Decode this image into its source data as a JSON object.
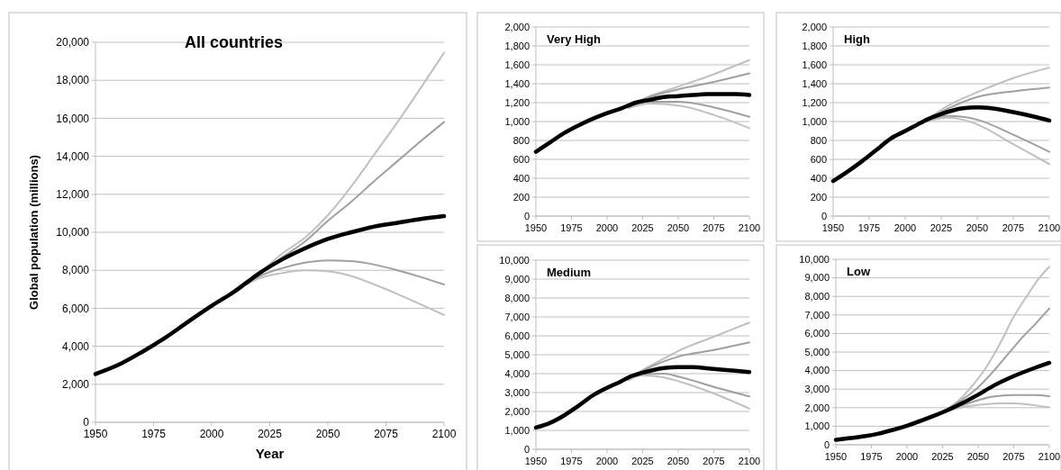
{
  "chart_data": [
    {
      "type": "line",
      "title": "All countries",
      "xlabel": "Year",
      "ylabel": "Global population (millions)",
      "xlim": [
        1950,
        2100
      ],
      "xticks": [
        1950,
        1975,
        2000,
        2025,
        2050,
        2075,
        2100
      ],
      "ylim": [
        0,
        20000
      ],
      "yticks": [
        0,
        {
          "value": 2000,
          "label": "2,000"
        },
        {
          "value": 4000,
          "label": "4,000"
        },
        {
          "value": 6000,
          "label": "6,000"
        },
        {
          "value": 8000,
          "label": "8,000"
        },
        {
          "value": 10000,
          "label": "10,000"
        },
        {
          "value": 12000,
          "label": "12,000"
        },
        {
          "value": 14000,
          "label": "14,000"
        },
        {
          "value": 16000,
          "label": "16,000"
        },
        {
          "value": 18000,
          "label": "18,000"
        },
        {
          "value": 20000,
          "label": "20,000"
        }
      ],
      "grid": "y",
      "series": [
        {
          "color": "#c0c0c0",
          "x": [
            2015,
            2020,
            2030,
            2040,
            2050,
            2060,
            2070,
            2080,
            2090,
            2100
          ],
          "values": [
            7350,
            7800,
            8850,
            9700,
            10900,
            12400,
            14100,
            15800,
            17600,
            19450
          ]
        },
        {
          "color": "#a0a0a0",
          "x": [
            2015,
            2020,
            2030,
            2040,
            2050,
            2060,
            2070,
            2080,
            2090,
            2100
          ],
          "values": [
            7350,
            7800,
            8650,
            9500,
            10600,
            11600,
            12700,
            13750,
            14800,
            15800
          ]
        },
        {
          "color": "#a0a0a0",
          "x": [
            2015,
            2020,
            2030,
            2040,
            2050,
            2060,
            2070,
            2080,
            2090,
            2100
          ],
          "values": [
            7300,
            7650,
            8100,
            8400,
            8520,
            8480,
            8300,
            8000,
            7650,
            7250
          ]
        },
        {
          "color": "#c0c0c0",
          "x": [
            2015,
            2020,
            2030,
            2040,
            2050,
            2060,
            2070,
            2080,
            2090,
            2100
          ],
          "values": [
            7250,
            7550,
            7850,
            8000,
            7950,
            7700,
            7250,
            6750,
            6200,
            5650
          ]
        },
        {
          "color": "#000000",
          "x": [
            1950,
            1960,
            1970,
            1980,
            1990,
            2000,
            2010,
            2015,
            2020,
            2030,
            2040,
            2050,
            2060,
            2070,
            2080,
            2090,
            2100
          ],
          "values": [
            2540,
            3030,
            3700,
            4450,
            5300,
            6130,
            6900,
            7350,
            7800,
            8550,
            9150,
            9650,
            10000,
            10300,
            10500,
            10700,
            10850
          ]
        }
      ]
    },
    {
      "type": "line",
      "title": "Very High",
      "xlim": [
        1950,
        2100
      ],
      "xticks": [
        1950,
        1975,
        2000,
        2025,
        2050,
        2075,
        2100
      ],
      "ylim": [
        0,
        2000
      ],
      "yticks": [
        0,
        200,
        400,
        600,
        800,
        {
          "value": 1000,
          "label": "1,000"
        },
        {
          "value": 1200,
          "label": "1,200"
        },
        {
          "value": 1400,
          "label": "1,400"
        },
        {
          "value": 1600,
          "label": "1,600"
        },
        {
          "value": 1800,
          "label": "1,800"
        },
        {
          "value": 2000,
          "label": "2,000"
        }
      ],
      "grid": "y",
      "series": [
        {
          "color": "#c0c0c0",
          "x": [
            2015,
            2030,
            2040,
            2050,
            2060,
            2075,
            2090,
            2100
          ],
          "values": [
            1160,
            1270,
            1320,
            1370,
            1420,
            1500,
            1590,
            1650
          ]
        },
        {
          "color": "#a0a0a0",
          "x": [
            2015,
            2030,
            2050,
            2075,
            2100
          ],
          "values": [
            1160,
            1260,
            1340,
            1420,
            1510
          ]
        },
        {
          "color": "#a0a0a0",
          "x": [
            2015,
            2030,
            2050,
            2075,
            2100
          ],
          "values": [
            1150,
            1210,
            1210,
            1150,
            1050
          ]
        },
        {
          "color": "#c0c0c0",
          "x": [
            2015,
            2030,
            2050,
            2075,
            2100
          ],
          "values": [
            1140,
            1190,
            1170,
            1070,
            930
          ]
        },
        {
          "color": "#000000",
          "x": [
            1950,
            1960,
            1970,
            1980,
            1990,
            2000,
            2010,
            2015,
            2020,
            2030,
            2040,
            2050,
            2060,
            2070,
            2080,
            2090,
            2100
          ],
          "values": [
            680,
            780,
            880,
            960,
            1030,
            1090,
            1140,
            1170,
            1200,
            1230,
            1260,
            1270,
            1280,
            1290,
            1290,
            1290,
            1280
          ]
        }
      ]
    },
    {
      "type": "line",
      "title": "High",
      "xlim": [
        1950,
        2100
      ],
      "xticks": [
        1950,
        1975,
        2000,
        2025,
        2050,
        2075,
        2100
      ],
      "ylim": [
        0,
        2000
      ],
      "yticks": [
        0,
        200,
        400,
        600,
        800,
        {
          "value": 1000,
          "label": "1,000"
        },
        {
          "value": 1200,
          "label": "1,200"
        },
        {
          "value": 1400,
          "label": "1,400"
        },
        {
          "value": 1600,
          "label": "1,600"
        },
        {
          "value": 1800,
          "label": "1,800"
        },
        {
          "value": 2000,
          "label": "2,000"
        }
      ],
      "grid": "y",
      "series": [
        {
          "color": "#c0c0c0",
          "x": [
            2015,
            2030,
            2050,
            2075,
            2100
          ],
          "values": [
            1020,
            1170,
            1310,
            1460,
            1570
          ]
        },
        {
          "color": "#a0a0a0",
          "x": [
            2015,
            2030,
            2050,
            2075,
            2100
          ],
          "values": [
            1020,
            1140,
            1260,
            1320,
            1360
          ]
        },
        {
          "color": "#a0a0a0",
          "x": [
            2015,
            2030,
            2040,
            2050,
            2075,
            2100
          ],
          "values": [
            1010,
            1060,
            1050,
            1020,
            860,
            680
          ]
        },
        {
          "color": "#c0c0c0",
          "x": [
            2015,
            2030,
            2040,
            2050,
            2075,
            2100
          ],
          "values": [
            1000,
            1040,
            1020,
            970,
            760,
            550
          ]
        },
        {
          "color": "#000000",
          "x": [
            1950,
            1960,
            1970,
            1980,
            1990,
            2000,
            2010,
            2015,
            2025,
            2040,
            2050,
            2060,
            2075,
            2090,
            2100
          ],
          "values": [
            370,
            470,
            580,
            700,
            820,
            900,
            980,
            1020,
            1080,
            1140,
            1150,
            1140,
            1100,
            1050,
            1010
          ]
        }
      ]
    },
    {
      "type": "line",
      "title": "Medium",
      "xlim": [
        1950,
        2100
      ],
      "xticks": [
        1950,
        1975,
        2000,
        2025,
        2050,
        2075,
        2100
      ],
      "ylim": [
        0,
        10000
      ],
      "yticks": [
        0,
        {
          "value": 1000,
          "label": "1,000"
        },
        {
          "value": 2000,
          "label": "2,000"
        },
        {
          "value": 3000,
          "label": "3,000"
        },
        {
          "value": 4000,
          "label": "4,000"
        },
        {
          "value": 5000,
          "label": "5,000"
        },
        {
          "value": 6000,
          "label": "6,000"
        },
        {
          "value": 7000,
          "label": "7,000"
        },
        {
          "value": 8000,
          "label": "8,000"
        },
        {
          "value": 9000,
          "label": "9,000"
        },
        {
          "value": 10000,
          "label": "10,000"
        }
      ],
      "grid": "y",
      "series": [
        {
          "color": "#c0c0c0",
          "x": [
            2015,
            2025,
            2040,
            2050,
            2075,
            2100
          ],
          "values": [
            3750,
            4200,
            4800,
            5200,
            5950,
            6700
          ]
        },
        {
          "color": "#a0a0a0",
          "x": [
            2015,
            2025,
            2040,
            2050,
            2075,
            2100
          ],
          "values": [
            3750,
            4150,
            4650,
            4900,
            5250,
            5650
          ]
        },
        {
          "color": "#a0a0a0",
          "x": [
            2015,
            2025,
            2040,
            2050,
            2075,
            2100
          ],
          "values": [
            3700,
            3950,
            4000,
            3850,
            3300,
            2800
          ]
        },
        {
          "color": "#c0c0c0",
          "x": [
            2015,
            2025,
            2040,
            2050,
            2075,
            2100
          ],
          "values": [
            3650,
            3900,
            3800,
            3600,
            2950,
            2150
          ]
        },
        {
          "color": "#000000",
          "x": [
            1950,
            1960,
            1970,
            1980,
            1990,
            2000,
            2010,
            2015,
            2025,
            2040,
            2050,
            2060,
            2075,
            2090,
            2100
          ],
          "values": [
            1150,
            1400,
            1800,
            2300,
            2850,
            3250,
            3600,
            3800,
            4050,
            4300,
            4350,
            4350,
            4250,
            4150,
            4080
          ]
        }
      ]
    },
    {
      "type": "line",
      "title": "Low",
      "xlim": [
        1950,
        2100
      ],
      "xticks": [
        1950,
        1975,
        2000,
        2025,
        2050,
        2075,
        2100
      ],
      "ylim": [
        0,
        10000
      ],
      "yticks": [
        0,
        {
          "value": 1000,
          "label": "1,000"
        },
        {
          "value": 2000,
          "label": "2,000"
        },
        {
          "value": 3000,
          "label": "3,000"
        },
        {
          "value": 4000,
          "label": "4,000"
        },
        {
          "value": 5000,
          "label": "5,000"
        },
        {
          "value": 6000,
          "label": "6,000"
        },
        {
          "value": 7000,
          "label": "7,000"
        },
        {
          "value": 8000,
          "label": "8,000"
        },
        {
          "value": 9000,
          "label": "9,000"
        },
        {
          "value": 10000,
          "label": "10,000"
        }
      ],
      "grid": "y",
      "series": [
        {
          "color": "#c0c0c0",
          "x": [
            2015,
            2025,
            2035,
            2045,
            2055,
            2065,
            2075,
            2085,
            2092,
            2100
          ],
          "values": [
            1450,
            1800,
            2300,
            3100,
            4100,
            5400,
            6900,
            8100,
            8900,
            9600
          ]
        },
        {
          "color": "#a0a0a0",
          "x": [
            2015,
            2025,
            2040,
            2050,
            2060,
            2070,
            2080,
            2090,
            2100
          ],
          "values": [
            1450,
            1780,
            2500,
            3100,
            3900,
            4800,
            5700,
            6500,
            7350
          ]
        },
        {
          "color": "#a0a0a0",
          "x": [
            2015,
            2025,
            2040,
            2050,
            2060,
            2075,
            2090,
            2100
          ],
          "values": [
            1450,
            1750,
            2150,
            2400,
            2600,
            2680,
            2680,
            2620
          ]
        },
        {
          "color": "#c0c0c0",
          "x": [
            2015,
            2025,
            2040,
            2050,
            2065,
            2075,
            2090,
            2100
          ],
          "values": [
            1450,
            1720,
            2050,
            2150,
            2230,
            2230,
            2130,
            2020
          ]
        },
        {
          "color": "#000000",
          "x": [
            1950,
            1960,
            1970,
            1980,
            1990,
            2000,
            2010,
            2015,
            2025,
            2035,
            2050,
            2060,
            2075,
            2090,
            2100
          ],
          "values": [
            270,
            360,
            460,
            600,
            800,
            1030,
            1300,
            1450,
            1750,
            2100,
            2700,
            3150,
            3700,
            4150,
            4420
          ]
        }
      ]
    }
  ]
}
